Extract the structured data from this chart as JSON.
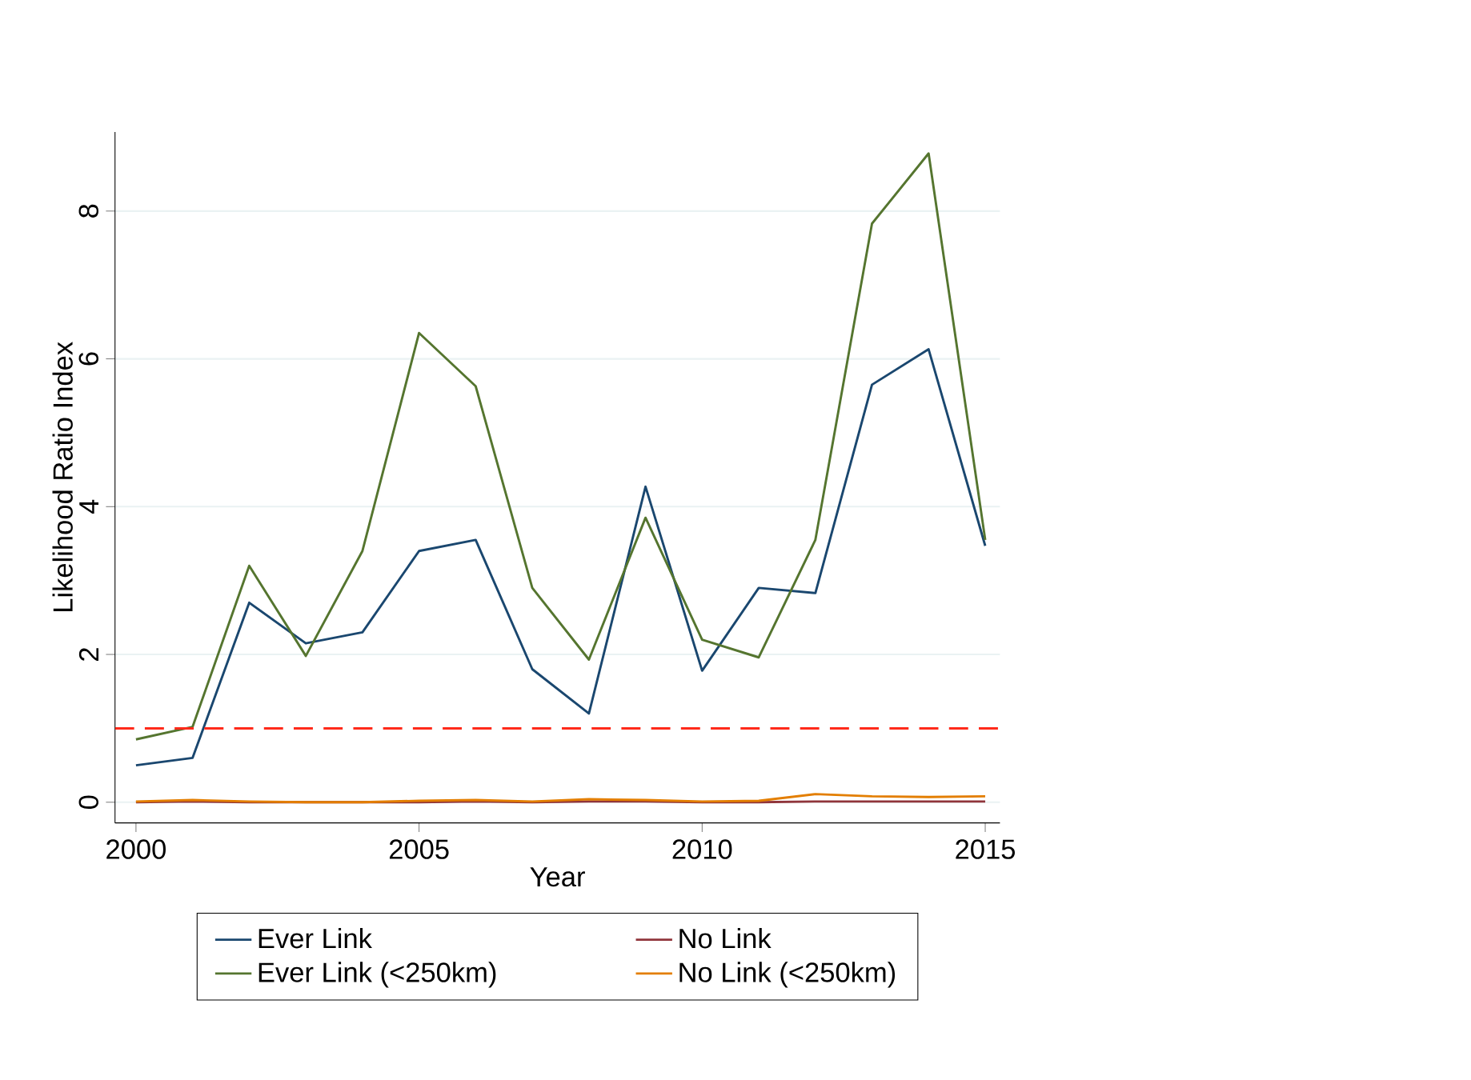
{
  "chart_data": {
    "type": "line",
    "xlabel": "Year",
    "ylabel": "Likelihood Ratio Index",
    "x": [
      2000,
      2001,
      2002,
      2003,
      2004,
      2005,
      2006,
      2007,
      2008,
      2009,
      2010,
      2011,
      2012,
      2013,
      2014,
      2015
    ],
    "series": [
      {
        "name": "Ever Link",
        "color": "#1a476f",
        "values": [
          0.5,
          0.6,
          2.7,
          2.15,
          2.3,
          3.4,
          3.55,
          1.8,
          1.2,
          4.27,
          1.78,
          2.9,
          2.83,
          5.65,
          6.13,
          3.47
        ]
      },
      {
        "name": "No Link",
        "color": "#90353b",
        "values": [
          0.0,
          0.01,
          0.0,
          0.0,
          0.0,
          0.0,
          0.01,
          0.0,
          0.01,
          0.01,
          0.0,
          0.0,
          0.01,
          0.01,
          0.01,
          0.01
        ]
      },
      {
        "name": "Ever Link (<250km)",
        "color": "#55752f",
        "values": [
          0.85,
          1.02,
          3.2,
          1.98,
          3.4,
          6.35,
          5.63,
          2.9,
          1.93,
          3.85,
          2.2,
          1.96,
          3.55,
          7.83,
          8.78,
          3.55
        ]
      },
      {
        "name": "No Link (<250km)",
        "color": "#e37e00",
        "values": [
          0.01,
          0.03,
          0.01,
          0.0,
          0.0,
          0.02,
          0.03,
          0.01,
          0.04,
          0.03,
          0.01,
          0.02,
          0.11,
          0.08,
          0.07,
          0.08
        ]
      }
    ],
    "xlim": [
      1999.63,
      2015.26
    ],
    "ylim": [
      -0.28,
      9.07
    ],
    "xticks": [
      2000,
      2005,
      2010,
      2015
    ],
    "yticks": [
      0,
      2,
      4,
      6,
      8
    ],
    "ref_lines": [
      {
        "axis": "y",
        "value": 1,
        "color": "#ff2a1a",
        "line_style": "dashed"
      }
    ],
    "grid": "y",
    "legend": "bottom",
    "line_style": "solid",
    "marker": "none"
  }
}
